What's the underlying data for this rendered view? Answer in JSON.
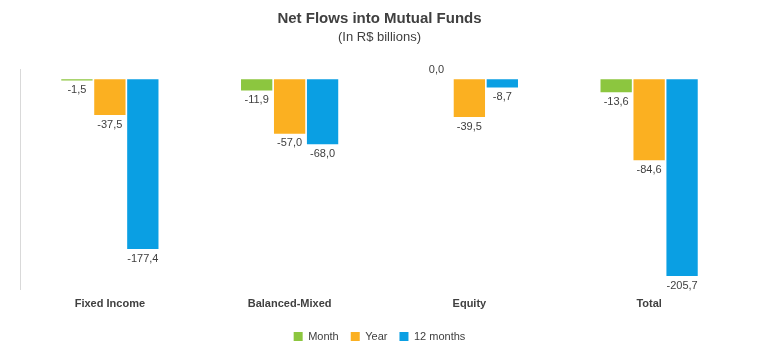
{
  "chart_data": {
    "type": "bar",
    "title": "Net Flows into Mutual Funds",
    "subtitle": "(In R$ billions)",
    "categories": [
      "Fixed Income",
      "Balanced-Mixed",
      "Equity",
      "Total"
    ],
    "series": [
      {
        "name": "Month",
        "color": "#8cc63f",
        "values": [
          -1.5,
          -11.9,
          0.0,
          -13.6
        ],
        "value_labels": [
          "-1,5",
          "-11,9",
          "0,0",
          "-13,6"
        ]
      },
      {
        "name": "Year",
        "color": "#fbb021",
        "values": [
          -37.5,
          -57.0,
          -39.5,
          -84.6
        ],
        "value_labels": [
          "-37,5",
          "-57,0",
          "-39,5",
          "-84,6"
        ]
      },
      {
        "name": "12 months",
        "color": "#0a9fe3",
        "values": [
          -177.4,
          -68.0,
          -8.7,
          -205.7
        ],
        "value_labels": [
          "-177,4",
          "-68,0",
          "-8,7",
          "-205,7"
        ]
      }
    ],
    "ylim": [
      -220,
      10
    ],
    "grid": false,
    "tick_labels": "x",
    "legend": "bottom",
    "data_labels": true
  }
}
